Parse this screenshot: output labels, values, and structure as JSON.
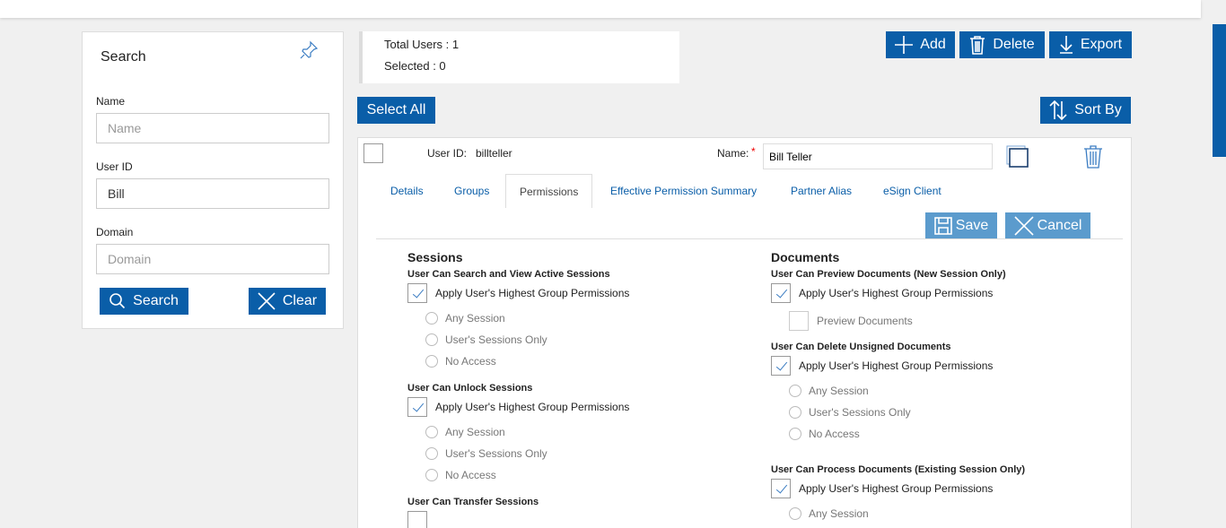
{
  "search": {
    "title": "Search",
    "name_label": "Name",
    "name_placeholder": "Name",
    "name_value": "",
    "userid_label": "User ID",
    "userid_value": "Bill",
    "domain_label": "Domain",
    "domain_placeholder": "Domain",
    "search_btn": "Search",
    "clear_btn": "Clear"
  },
  "stats": {
    "total": "Total Users : 1",
    "selected": "Selected : 0"
  },
  "toolbar": {
    "add": "Add",
    "delete": "Delete",
    "export": "Export",
    "select_all": "Select All",
    "sort_by": "Sort By"
  },
  "user": {
    "userid_label": "User ID:",
    "userid": "billteller",
    "name_label": "Name:",
    "required": "*",
    "name": "Bill Teller"
  },
  "tabs": [
    "Details",
    "Groups",
    "Permissions",
    "Effective Permission Summary",
    "Partner Alias",
    "eSign Client"
  ],
  "active_tab": "Permissions",
  "actions": {
    "save": "Save",
    "cancel": "Cancel"
  },
  "sessions": {
    "title": "Sessions",
    "groups": [
      {
        "title": "User Can Search and View Active Sessions",
        "apply": "Apply User's Highest Group Permissions",
        "checked": true,
        "options": [
          "Any Session",
          "User's Sessions Only",
          "No Access"
        ]
      },
      {
        "title": "User Can Unlock Sessions",
        "apply": "Apply User's Highest Group Permissions",
        "checked": true,
        "options": [
          "Any Session",
          "User's Sessions Only",
          "No Access"
        ]
      },
      {
        "title": "User Can Transfer Sessions"
      }
    ]
  },
  "documents": {
    "title": "Documents",
    "groups": [
      {
        "title": "User Can Preview Documents (New Session Only)",
        "apply": "Apply User's Highest Group Permissions",
        "checked": true,
        "sub_checkbox": "Preview Documents"
      },
      {
        "title": "User Can Delete Unsigned Documents",
        "apply": "Apply User's Highest Group Permissions",
        "checked": true,
        "options": [
          "Any Session",
          "User's Sessions Only",
          "No Access"
        ]
      },
      {
        "title": "User Can Process Documents (Existing Session Only)",
        "apply": "Apply User's Highest Group Permissions",
        "checked": true,
        "options": [
          "Any Session"
        ]
      }
    ]
  },
  "colors": {
    "primary": "#0a5ea8",
    "disabled_button": "#5b9bcd"
  }
}
